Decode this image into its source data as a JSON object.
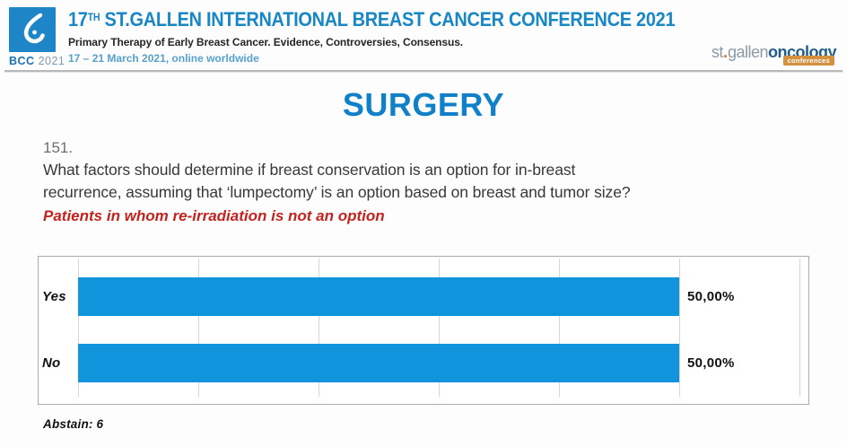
{
  "header": {
    "logo": {
      "acronym": "BCC",
      "year": "2021"
    },
    "title_num": "17",
    "title_sup": "TH",
    "title_rest": " ST.GALLEN INTERNATIONAL BREAST CANCER CONFERENCE 2021",
    "subtitle": "Primary Therapy of Early Breast Cancer. Evidence, Controversies, Consensus.",
    "date_line": "17 – 21 March 2021, online worldwide",
    "partner_logo": {
      "st": "st",
      "dot": ".",
      "gallen": "gallen",
      "oncology": "oncology",
      "badge": "conferences"
    }
  },
  "main": {
    "section_title": "SURGERY",
    "question_number": "151.",
    "question_lines": [
      "What factors should determine if breast conservation is an option for in-breast",
      "recurrence, assuming that ‘lumpectomy’ is an option based on breast and tumor size?"
    ],
    "question_note": "Patients in whom re-irradiation is not an option",
    "abstain_note": "Abstain: 6"
  },
  "colors": {
    "accent_blue": "#1787c5",
    "title_blue": "#1080c8",
    "bar_blue": "#1095dc",
    "note_red": "#c3231e"
  },
  "chart_data": {
    "type": "bar",
    "orientation": "horizontal",
    "title": "",
    "xlabel": "",
    "ylabel": "",
    "categories": [
      "Yes",
      "No"
    ],
    "values": [
      50.0,
      50.0
    ],
    "value_labels": [
      "50,00%",
      "50,00%"
    ],
    "xlim": [
      0,
      60
    ],
    "grid_step": 10,
    "grid": true,
    "legend": false,
    "annotations": [
      "Abstain: 6"
    ]
  }
}
